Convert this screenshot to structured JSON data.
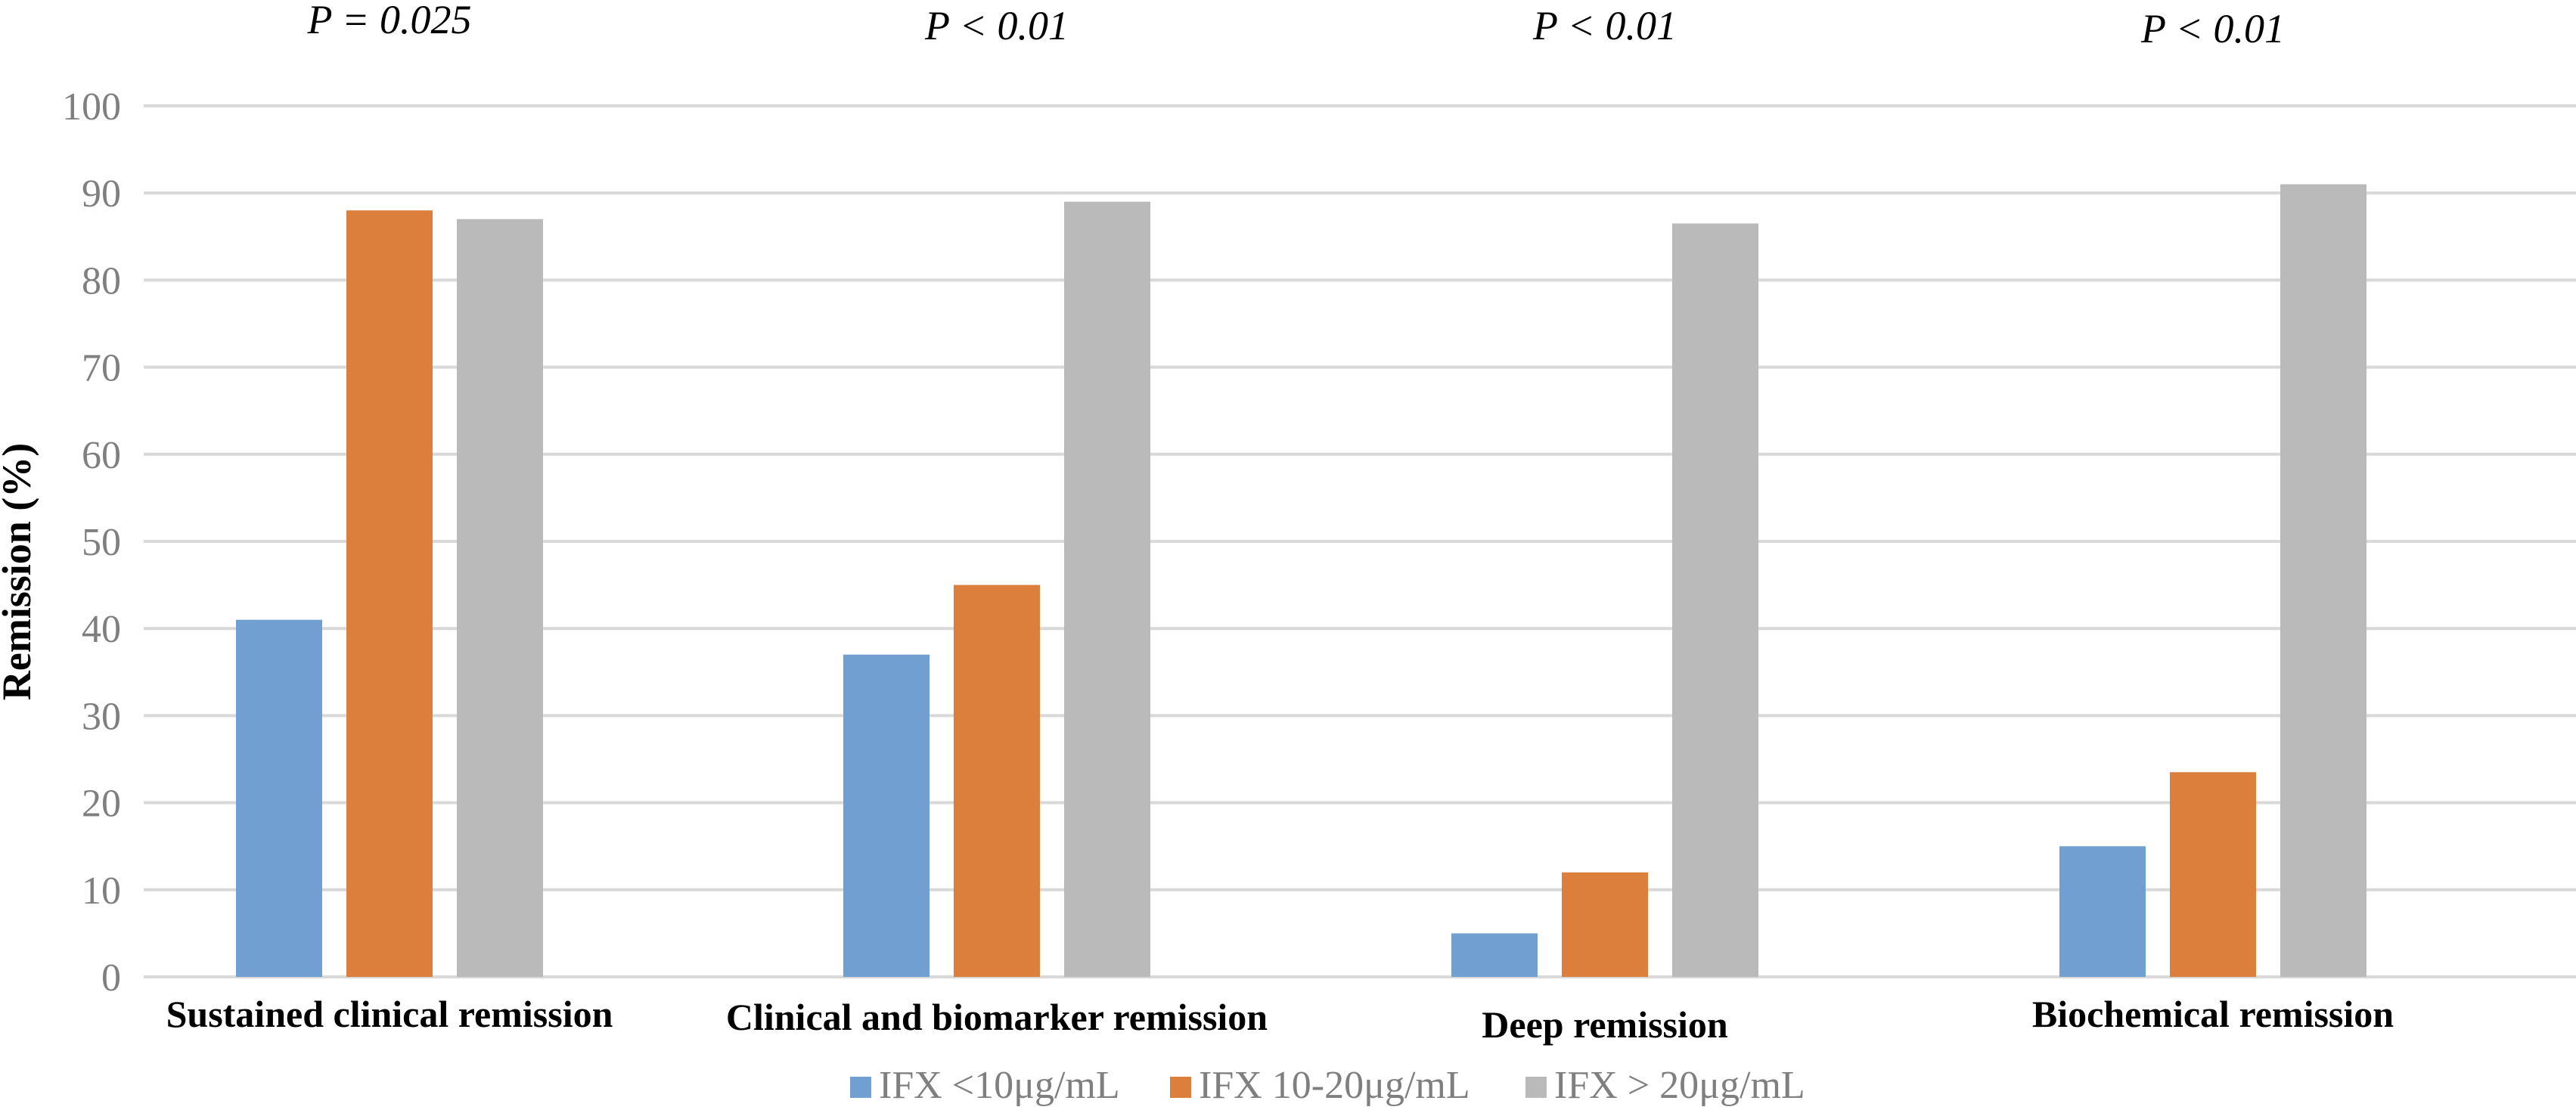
{
  "chart_data": {
    "type": "bar",
    "title": "",
    "xlabel": "",
    "ylabel": "Remission (%)",
    "ylim": [
      0,
      100
    ],
    "yticks": [
      0,
      10,
      20,
      30,
      40,
      50,
      60,
      70,
      80,
      90,
      100
    ],
    "grid": true,
    "legend_position": "bottom",
    "categories": [
      "Sustained clinical remission",
      "Clinical and biomarker remission",
      "Deep remission",
      "Biochemical remission"
    ],
    "annotations": [
      "P = 0.025",
      "P < 0.01",
      "P < 0.01",
      "P < 0.01"
    ],
    "series": [
      {
        "name": "IFX <10μg/mL",
        "color": "#729fd1",
        "values": [
          41,
          37,
          5,
          15
        ]
      },
      {
        "name": "IFX 10-20μg/mL",
        "color": "#dc7f3c",
        "values": [
          88,
          45,
          12,
          23.5
        ]
      },
      {
        "name": "IFX > 20μg/mL",
        "color": "#bababa",
        "values": [
          87,
          89,
          86.5,
          91
        ]
      }
    ]
  }
}
